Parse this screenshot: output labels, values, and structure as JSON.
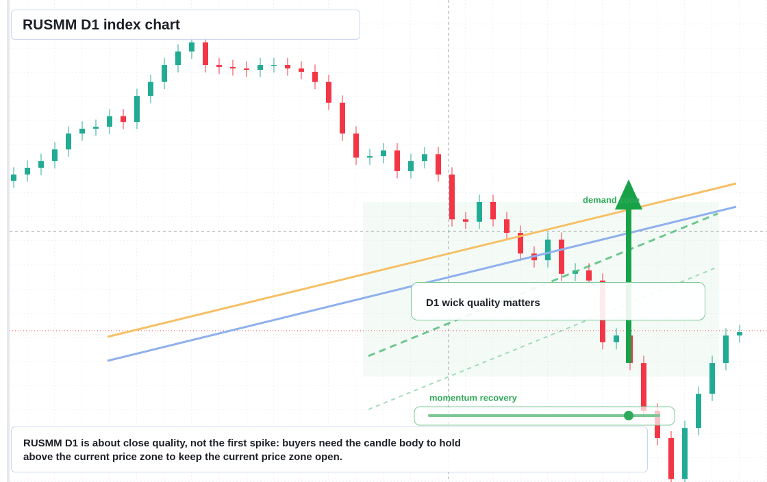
{
  "chart_data": {
    "type": "candlestick",
    "title": "RUSMM D1 index chart",
    "annotations": {
      "zone": "demand zone",
      "wick": "D1 wick quality matters",
      "momentum": "momentum recovery",
      "note": "RUSMM D1 is about close quality, not the first spike: buyers need the candle body to hold above the current price zone to keep the current price zone open."
    },
    "up_color": "#22ab94",
    "down_color": "#f23645",
    "ylim": [
      0,
      100
    ],
    "open": [
      62.5,
      63.8,
      65.2,
      66.6,
      69.0,
      72.3,
      73.3,
      73.7,
      75.9,
      74.7,
      80.1,
      83.0,
      86.5,
      89.3,
      91.2,
      86.5,
      86.1,
      85.8,
      85.5,
      86.5,
      86.5,
      85.8,
      85.1,
      83.0,
      78.7,
      72.3,
      67.3,
      67.6,
      68.8,
      64.5,
      66.6,
      68.0,
      63.8,
      54.5,
      54.0,
      58.1,
      54.5,
      51.7,
      47.4,
      46.0,
      50.3,
      43.2,
      43.9,
      41.8,
      29.0,
      30.4,
      24.7,
      14.8,
      9.1,
      0.6,
      11.2,
      18.3,
      24.7,
      30.4
    ],
    "high": [
      65.3,
      66.7,
      68.1,
      70.5,
      73.8,
      74.8,
      75.2,
      77.4,
      77.4,
      81.6,
      84.5,
      88.0,
      90.8,
      92.7,
      92.7,
      88.0,
      87.6,
      87.3,
      88.0,
      88.0,
      88.0,
      87.3,
      86.6,
      84.5,
      80.2,
      73.8,
      69.1,
      70.3,
      70.3,
      68.1,
      69.5,
      69.5,
      65.3,
      56.0,
      59.6,
      59.6,
      56.0,
      53.2,
      48.9,
      51.8,
      51.8,
      45.4,
      45.4,
      43.3,
      31.9,
      31.9,
      26.2,
      16.3,
      10.6,
      12.7,
      19.8,
      26.2,
      31.9,
      32.6
    ],
    "low": [
      61.0,
      62.3,
      63.7,
      65.1,
      67.5,
      70.8,
      71.8,
      72.2,
      73.2,
      73.2,
      78.6,
      81.5,
      85.0,
      87.8,
      85.0,
      84.6,
      84.3,
      84.0,
      84.0,
      85.0,
      84.3,
      83.6,
      81.5,
      77.2,
      70.8,
      65.8,
      65.8,
      66.1,
      63.0,
      63.0,
      65.1,
      62.3,
      53.0,
      52.5,
      52.5,
      53.0,
      50.2,
      45.9,
      44.5,
      44.5,
      41.7,
      41.7,
      40.3,
      27.5,
      27.5,
      23.2,
      13.3,
      7.6,
      -0.9,
      -0.9,
      9.7,
      16.8,
      23.2,
      28.9
    ],
    "close": [
      63.8,
      65.2,
      66.6,
      69.0,
      72.3,
      73.3,
      73.7,
      75.9,
      74.7,
      80.1,
      83.0,
      86.5,
      89.3,
      91.2,
      86.5,
      86.1,
      85.8,
      85.5,
      86.5,
      86.5,
      85.8,
      85.1,
      83.0,
      78.7,
      72.3,
      67.3,
      67.6,
      68.8,
      64.5,
      66.6,
      68.0,
      63.8,
      54.5,
      54.0,
      58.1,
      54.5,
      51.7,
      47.4,
      46.0,
      50.3,
      43.2,
      43.9,
      41.8,
      29.0,
      30.4,
      24.7,
      14.8,
      9.1,
      0.6,
      11.2,
      18.3,
      24.7,
      30.4,
      31.1
    ]
  }
}
